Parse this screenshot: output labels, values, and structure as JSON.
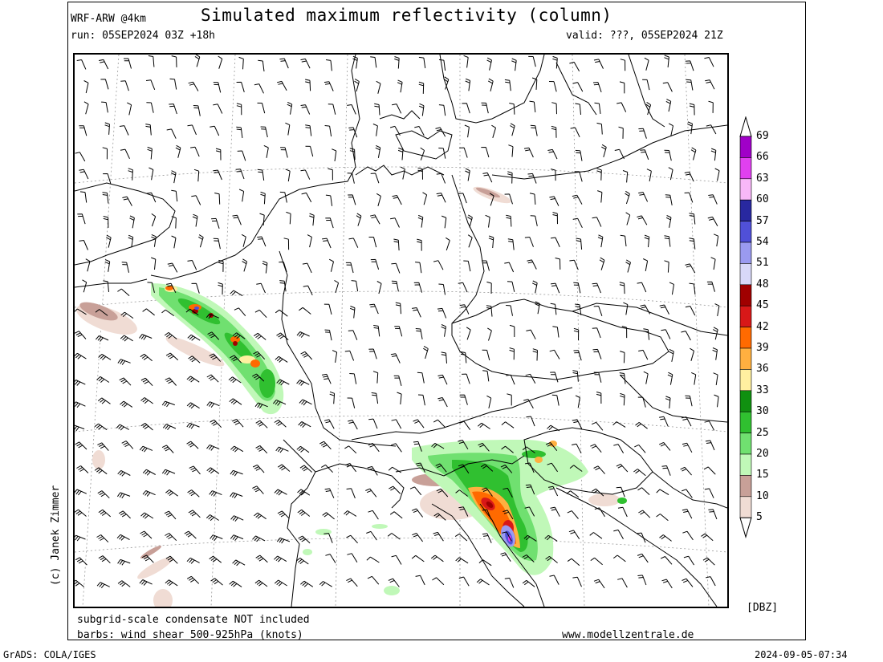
{
  "header": {
    "model": "WRF-ARW @4km",
    "title": "Simulated maximum reflectivity (column)",
    "run": "run: 05SEP2024 03Z +18h",
    "valid": "valid: ???, 05SEP2024 21Z"
  },
  "footer": {
    "note_condensate": "subgrid-scale condensate NOT included",
    "note_barbs": "barbs: wind shear 500-925hPa (knots)",
    "website": "www.modellzentrale.de",
    "grads": "GrADS: COLA/IGES",
    "timestamp": "2024-09-05-07:34",
    "copyright": "(c) Janek Zimmer"
  },
  "colorbar": {
    "unit": "[DBZ]",
    "levels": [
      "69",
      "66",
      "63",
      "60",
      "57",
      "54",
      "51",
      "48",
      "45",
      "42",
      "39",
      "36",
      "33",
      "30",
      "25",
      "20",
      "15",
      "10",
      "5"
    ],
    "colors": [
      "#a000c8",
      "#e040f0",
      "#f8b8f8",
      "#2828a0",
      "#5050d8",
      "#9a9af0",
      "#d8d8f8",
      "#a00000",
      "#d81818",
      "#ff6a00",
      "#ffb040",
      "#fff0a0",
      "#109010",
      "#30c030",
      "#70e070",
      "#c0f8b8",
      "#c8a098",
      "#f0dcd4"
    ],
    "top_triangle": "#ffffff",
    "bottom_triangle": "#ffffff"
  },
  "map": {
    "coastline_color": "#000000",
    "border_color": "#000000",
    "grid_color": "#9a9a9a",
    "barb_color": "#000000"
  }
}
